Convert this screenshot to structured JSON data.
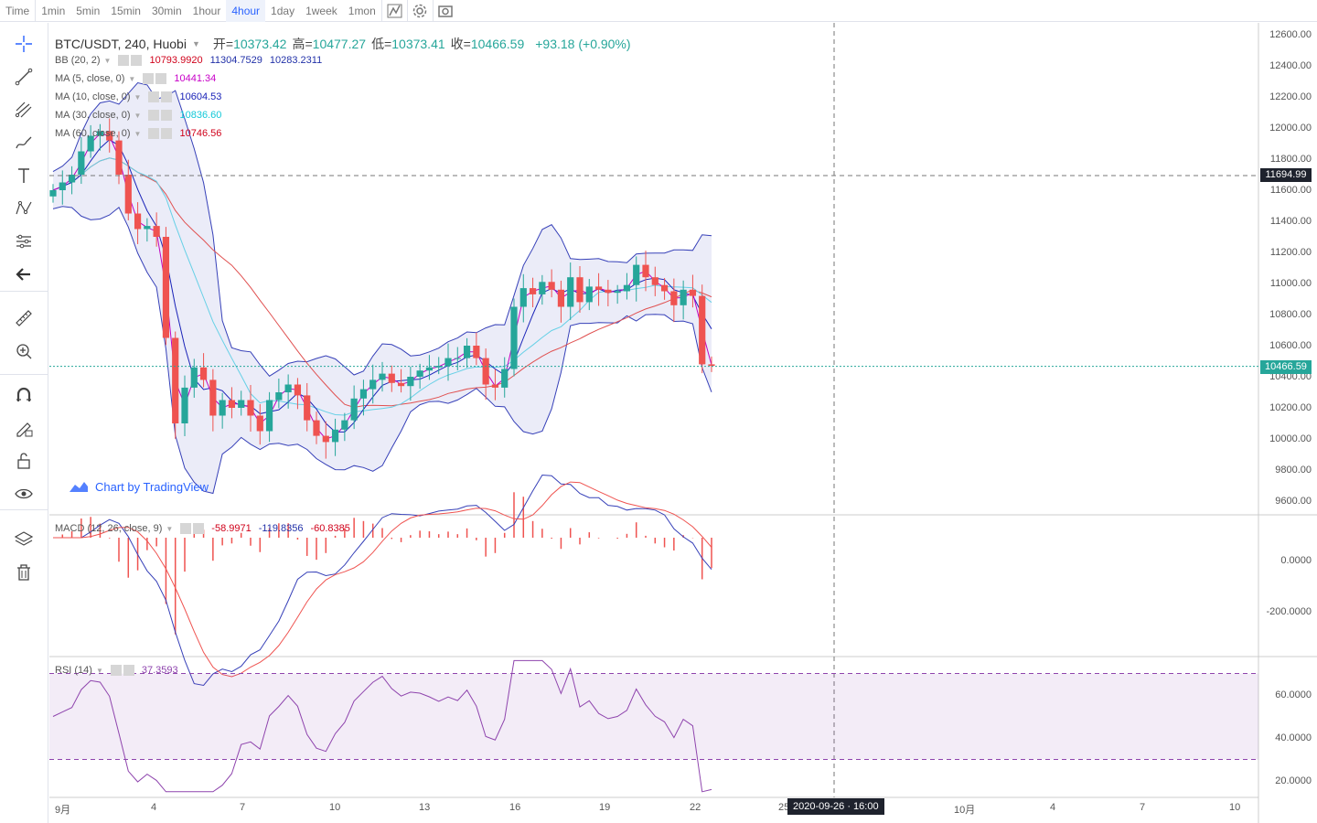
{
  "toolbar": {
    "timeframes": [
      "Time",
      "1min",
      "5min",
      "15min",
      "30min",
      "1hour",
      "4hour",
      "1day",
      "1week",
      "1mon"
    ],
    "active": "4hour",
    "icons": [
      "indicator-icon",
      "settings-icon",
      "screenshot-icon"
    ]
  },
  "sidebar": {
    "tools": [
      "crosshair-icon",
      "trend-line-icon",
      "pitchfork-icon",
      "brush-icon",
      "text-icon",
      "pattern-icon",
      "prediction-icon",
      "back-arrow-icon",
      "ruler-icon",
      "zoom-in-icon",
      "magnet-icon",
      "lock-draw-icon",
      "unlock-icon",
      "eye-icon",
      "layers-icon",
      "trash-icon"
    ]
  },
  "legend": {
    "symbol": "BTC/USDT, 240, Huobi",
    "open_label": "开=",
    "open": "10373.42",
    "high_label": "高=",
    "high": "10477.27",
    "low_label": "低=",
    "low": "10373.41",
    "close_label": "收=",
    "close": "10466.59",
    "change": "+93.18 (+0.90%)"
  },
  "indicators": [
    {
      "name": "BB (20, 2)",
      "values": [
        {
          "v": "10793.9920",
          "color": "#d0021b"
        },
        {
          "v": "11304.7529",
          "color": "#2130a8"
        },
        {
          "v": "10283.2311",
          "color": "#2130a8"
        }
      ]
    },
    {
      "name": "MA (5, close, 0)",
      "values": [
        {
          "v": "10441.34",
          "color": "#c800c8"
        }
      ]
    },
    {
      "name": "MA (10, close, 0)",
      "values": [
        {
          "v": "10604.53",
          "color": "#1a23b8"
        }
      ]
    },
    {
      "name": "MA (30, close, 0)",
      "values": [
        {
          "v": "10836.60",
          "color": "#12c8d8"
        }
      ]
    },
    {
      "name": "MA (60, close, 0)",
      "values": [
        {
          "v": "10746.56",
          "color": "#d0021b"
        }
      ]
    }
  ],
  "macd_legend": {
    "name": "MACD (12, 26, close, 9)",
    "values": [
      {
        "v": "-58.9971",
        "color": "#d0021b"
      },
      {
        "v": "-119.8356",
        "color": "#2130a8"
      },
      {
        "v": "-60.8385",
        "color": "#d0021b"
      }
    ]
  },
  "rsi_legend": {
    "name": "RSI (14)",
    "values": [
      {
        "v": "37.3593",
        "color": "#8e44ad"
      }
    ]
  },
  "price_axis": [
    "12600.00",
    "12400.00",
    "12200.00",
    "12000.00",
    "11800.00",
    "11600.00",
    "11400.00",
    "11200.00",
    "11000.00",
    "10800.00",
    "10600.00",
    "10400.00",
    "10200.00",
    "10000.00",
    "9800.00",
    "9600.00"
  ],
  "macd_axis": [
    "0.0000",
    "-200.0000"
  ],
  "rsi_axis": [
    "60.0000",
    "40.0000",
    "20.0000"
  ],
  "time_axis": [
    "9月",
    "4",
    "7",
    "10",
    "13",
    "16",
    "19",
    "22",
    "25",
    "10月",
    "4",
    "7",
    "10"
  ],
  "crosshair_price": "11694.99",
  "last_price": "10466.59",
  "crosshair_time": "2020-09-26 · 16:00",
  "watermark": "Chart by TradingView",
  "colors": {
    "up": "#26a69a",
    "down": "#ef5350",
    "bb": "#3640b8",
    "ma5": "#c000c0",
    "ma10": "#1a23b8",
    "ma30": "#66d0e6",
    "ma60": "#e05050",
    "rsi": "#8e44ad"
  },
  "chart_data": {
    "type": "candlestick",
    "title": "BTC/USDT, 240, Huobi",
    "price_range": [
      9500,
      12700
    ],
    "close_series": [
      11600,
      11650,
      11700,
      11850,
      11950,
      11980,
      11920,
      11700,
      11450,
      11350,
      11370,
      11300,
      10650,
      10100,
      10330,
      10460,
      10380,
      10150,
      10250,
      10200,
      10250,
      10150,
      10050,
      10250,
      10300,
      10350,
      10280,
      10120,
      10020,
      9980,
      10060,
      10120,
      10260,
      10320,
      10380,
      10420,
      10360,
      10340,
      10400,
      10440,
      10460,
      10470,
      10520,
      10520,
      10600,
      10520,
      10350,
      10330,
      10450,
      10850,
      10970,
      10930,
      11010,
      10960,
      10850,
      11040,
      10880,
      10980,
      10960,
      10940,
      10950,
      10990,
      11120,
      11040,
      10990,
      10950,
      10860,
      10960,
      10920,
      10480,
      10470
    ],
    "macd_signal_range": [
      -330,
      130
    ],
    "rsi_range": [
      12,
      78
    ]
  }
}
